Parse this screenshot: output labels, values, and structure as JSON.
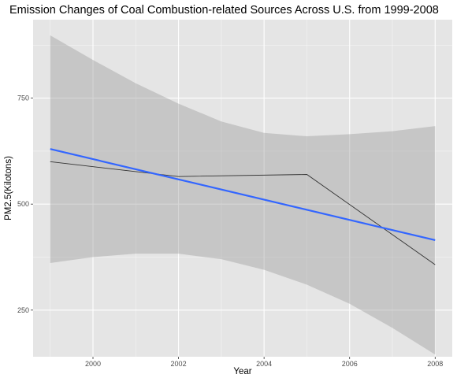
{
  "chart_data": {
    "type": "line",
    "title": "Emission Changes of Coal Combustion-related Sources Across U.S. from 1999-2008",
    "xlabel": "Year",
    "ylabel": "PM2.5(Kilotons)",
    "xlim": [
      1998.6,
      2008.4
    ],
    "ylim": [
      140,
      935
    ],
    "x_ticks": [
      2000,
      2002,
      2004,
      2006,
      2008
    ],
    "y_ticks": [
      250,
      500,
      750
    ],
    "grid": true,
    "legend": "none",
    "series": [
      {
        "x": [
          1999,
          2002,
          2005,
          2008
        ],
        "y": [
          600,
          565,
          570,
          357
        ],
        "color": "#333333"
      }
    ],
    "smooth": {
      "method": "linear",
      "x": [
        1999,
        2008
      ],
      "y": [
        630,
        415
      ],
      "color": "#3366FF",
      "ribbon": {
        "x": [
          1999,
          2000,
          2001,
          2002,
          2003,
          2004,
          2005,
          2006,
          2007,
          2008
        ],
        "lower": [
          361,
          375,
          383,
          383,
          370,
          345,
          310,
          265,
          208,
          145
        ],
        "upper": [
          898,
          840,
          785,
          737,
          695,
          668,
          660,
          665,
          672,
          684
        ],
        "color": "#999999"
      }
    },
    "colors": {
      "panel_bg": "#E5E5E5",
      "grid_major": "#FFFFFF",
      "ribbon_fill": "#999999"
    }
  }
}
